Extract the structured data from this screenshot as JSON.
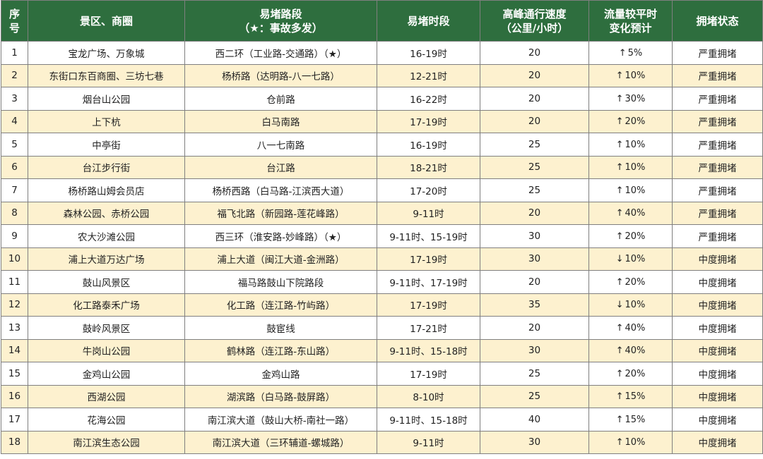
{
  "table": {
    "headers": {
      "index": [
        "序",
        "号"
      ],
      "area": "景区、商圈",
      "road": [
        "易堵路段",
        "（★：事故多发）"
      ],
      "period": "易堵时段",
      "speed": [
        "高峰通行速度",
        "（公里/小时）"
      ],
      "change": [
        "流量较平时",
        "变化预计"
      ],
      "status": "拥堵状态"
    },
    "rows": [
      {
        "index": "1",
        "area": "宝龙广场、万象城",
        "road": "西二环（工业路-交通路）（★）",
        "period": "16-19时",
        "speed": "20",
        "arrow": "↑",
        "change": "5%",
        "status": "严重拥堵"
      },
      {
        "index": "2",
        "area": "东街口东百商圈、三坊七巷",
        "road": "杨桥路（达明路-八一七路）",
        "period": "12-21时",
        "speed": "20",
        "arrow": "↑",
        "change": "10%",
        "status": "严重拥堵"
      },
      {
        "index": "3",
        "area": "烟台山公园",
        "road": "仓前路",
        "period": "16-22时",
        "speed": "20",
        "arrow": "↑",
        "change": "30%",
        "status": "严重拥堵"
      },
      {
        "index": "4",
        "area": "上下杭",
        "road": "白马南路",
        "period": "17-19时",
        "speed": "20",
        "arrow": "↑",
        "change": "20%",
        "status": "严重拥堵"
      },
      {
        "index": "5",
        "area": "中亭街",
        "road": "八一七南路",
        "period": "16-19时",
        "speed": "25",
        "arrow": "↑",
        "change": "10%",
        "status": "严重拥堵"
      },
      {
        "index": "6",
        "area": "台江步行街",
        "road": "台江路",
        "period": "18-21时",
        "speed": "25",
        "arrow": "↑",
        "change": "10%",
        "status": "严重拥堵"
      },
      {
        "index": "7",
        "area": "杨桥路山姆会员店",
        "road": "杨桥西路（白马路-江滨西大道）",
        "period": "17-20时",
        "speed": "25",
        "arrow": "↑",
        "change": "10%",
        "status": "严重拥堵"
      },
      {
        "index": "8",
        "area": "森林公园、赤桥公园",
        "road": "福飞北路（新园路-莲花峰路）",
        "period": "9-11时",
        "speed": "20",
        "arrow": "↑",
        "change": "40%",
        "status": "严重拥堵"
      },
      {
        "index": "9",
        "area": "农大沙滩公园",
        "road": "西三环（淮安路-妙峰路）（★）",
        "period": "9-11时、15-19时",
        "speed": "30",
        "arrow": "↑",
        "change": "20%",
        "status": "严重拥堵"
      },
      {
        "index": "10",
        "area": "浦上大道万达广场",
        "road": "浦上大道（闽江大道-金洲路）",
        "period": "17-19时",
        "speed": "30",
        "arrow": "↓",
        "change": "10%",
        "status": "中度拥堵"
      },
      {
        "index": "11",
        "area": "鼓山风景区",
        "road": "福马路鼓山下院路段",
        "period": "9-11时、17-19时",
        "speed": "20",
        "arrow": "↑",
        "change": "20%",
        "status": "中度拥堵"
      },
      {
        "index": "12",
        "area": "化工路泰禾广场",
        "road": "化工路（连江路-竹屿路）",
        "period": "17-19时",
        "speed": "35",
        "arrow": "↓",
        "change": "10%",
        "status": "中度拥堵"
      },
      {
        "index": "13",
        "area": "鼓岭风景区",
        "road": "鼓宦线",
        "period": "17-21时",
        "speed": "20",
        "arrow": "↑",
        "change": "40%",
        "status": "中度拥堵"
      },
      {
        "index": "14",
        "area": "牛岗山公园",
        "road": "鹤林路（连江路-东山路）",
        "period": "9-11时、15-18时",
        "speed": "30",
        "arrow": "↑",
        "change": "40%",
        "status": "中度拥堵"
      },
      {
        "index": "15",
        "area": "金鸡山公园",
        "road": "金鸡山路",
        "period": "17-19时",
        "speed": "25",
        "arrow": "↑",
        "change": "20%",
        "status": "中度拥堵"
      },
      {
        "index": "16",
        "area": "西湖公园",
        "road": "湖滨路（白马路-鼓屏路）",
        "period": "8-10时",
        "speed": "25",
        "arrow": "↑",
        "change": "15%",
        "status": "中度拥堵"
      },
      {
        "index": "17",
        "area": "花海公园",
        "road": "南江滨大道（鼓山大桥-南社一路）",
        "period": "9-11时、15-18时",
        "speed": "40",
        "arrow": "↑",
        "change": "15%",
        "status": "中度拥堵"
      },
      {
        "index": "18",
        "area": "南江滨生态公园",
        "road": "南江滨大道（三环辅道-螺城路）",
        "period": "9-11时",
        "speed": "30",
        "arrow": "↑",
        "change": "10%",
        "status": "中度拥堵"
      }
    ]
  },
  "colors": {
    "header_bg": "#2e6e3e",
    "header_text": "#ffffff",
    "stripe_bg": "#fdf1cf",
    "border": "#7f7f7f"
  }
}
